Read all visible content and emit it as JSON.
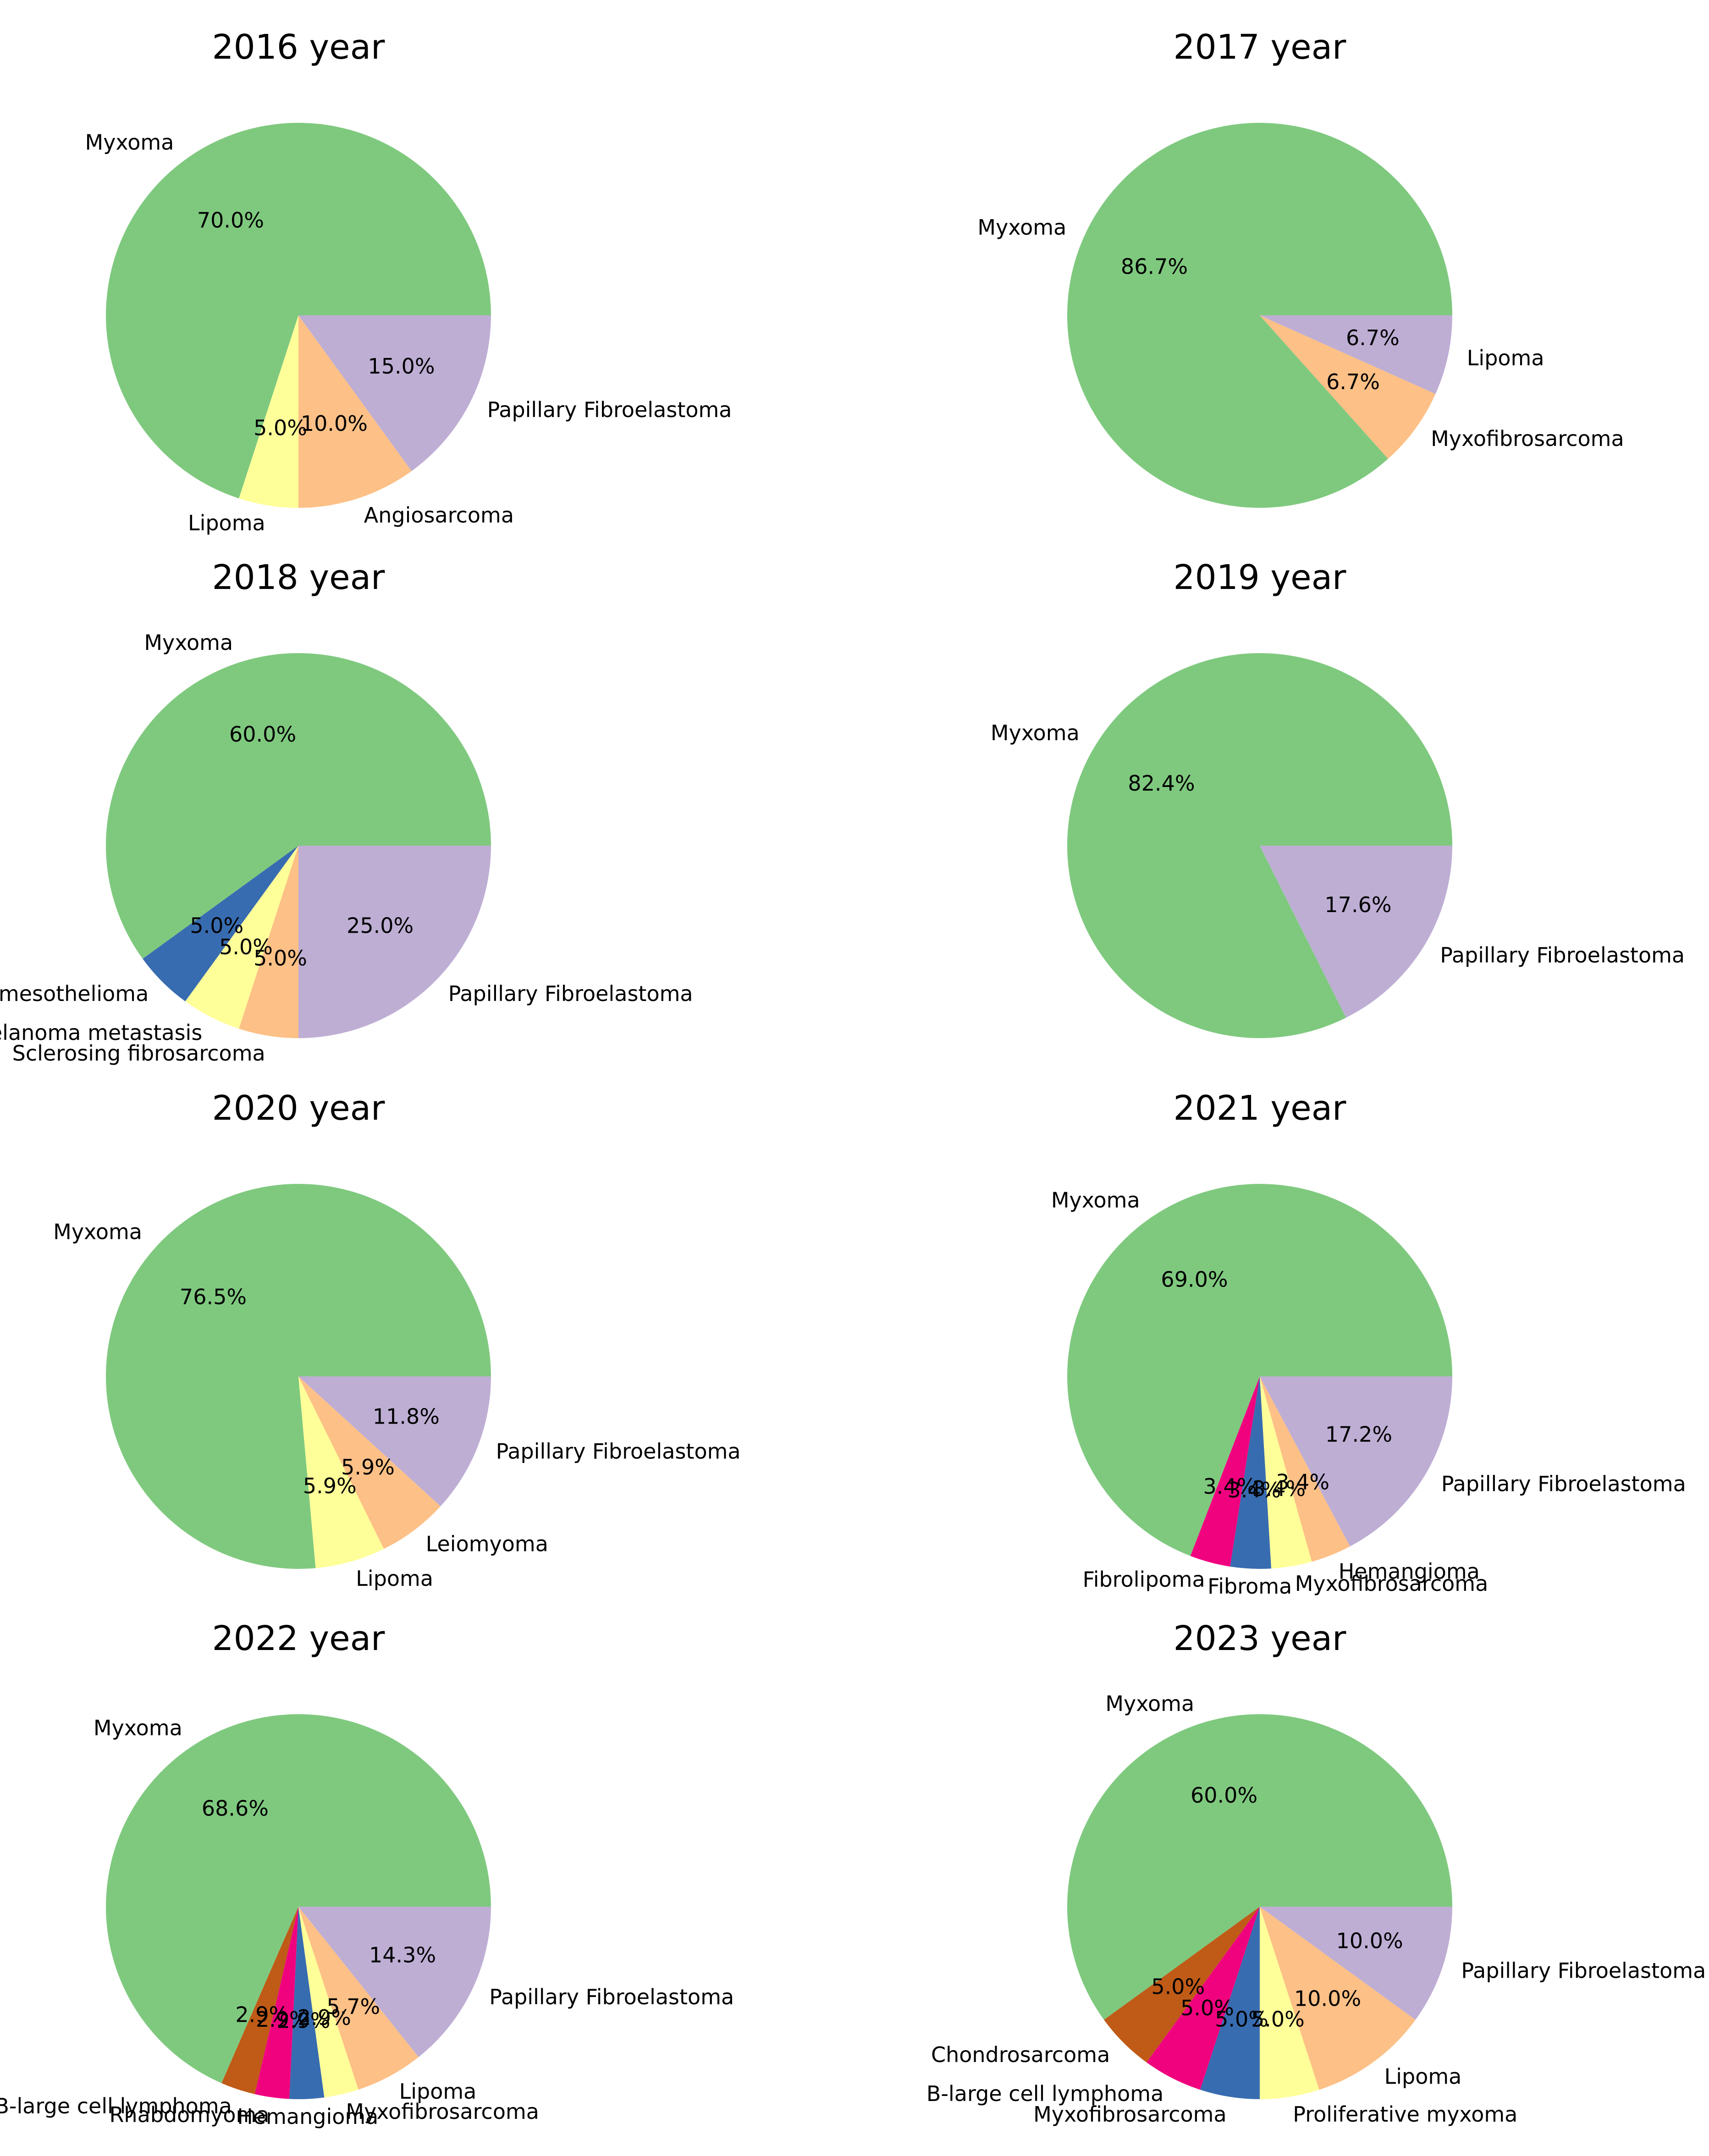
{
  "figure": {
    "layout": "4 rows x 2 columns of pie charts"
  },
  "palette": {
    "Myxoma": "#7fc97f",
    "Papillary Fibroelastoma": "#beaed4",
    "Orange": "#fdc086",
    "Yellow": "#ffff99",
    "Blue": "#386cb0",
    "Magenta": "#f0027f",
    "Brown": "#bf5b17"
  },
  "chart_data": [
    {
      "type": "pie",
      "title": "2016 year",
      "slices": [
        {
          "label": "Myxoma",
          "value": 70.0,
          "pct": "70.0%",
          "color": "#7fc97f"
        },
        {
          "label": "Lipoma",
          "value": 5.0,
          "pct": "5.0%",
          "color": "#ffff99"
        },
        {
          "label": "Angiosarcoma",
          "value": 10.0,
          "pct": "10.0%",
          "color": "#fdc086"
        },
        {
          "label": "Papillary Fibroelastoma",
          "value": 15.0,
          "pct": "15.0%",
          "color": "#beaed4"
        }
      ]
    },
    {
      "type": "pie",
      "title": "2017 year",
      "slices": [
        {
          "label": "Myxoma",
          "value": 86.7,
          "pct": "86.7%",
          "color": "#7fc97f"
        },
        {
          "label": "Myxofibrosarcoma",
          "value": 6.7,
          "pct": "6.7%",
          "color": "#fdc086"
        },
        {
          "label": "Lipoma",
          "value": 6.7,
          "pct": "6.7%",
          "color": "#beaed4"
        }
      ]
    },
    {
      "type": "pie",
      "title": "2018 year",
      "slices": [
        {
          "label": "Myxoma",
          "value": 60.0,
          "pct": "60.0%",
          "color": "#7fc97f"
        },
        {
          "label": "Epithelioid cell malignant mesothelioma",
          "value": 5.0,
          "pct": "5.0%",
          "color": "#386cb0"
        },
        {
          "label": "Melanoma metastasis",
          "value": 5.0,
          "pct": "5.0%",
          "color": "#ffff99"
        },
        {
          "label": "Sclerosing fibrosarcoma",
          "value": 5.0,
          "pct": "5.0%",
          "color": "#fdc086"
        },
        {
          "label": "Papillary Fibroelastoma",
          "value": 25.0,
          "pct": "25.0%",
          "color": "#beaed4"
        }
      ]
    },
    {
      "type": "pie",
      "title": "2019 year",
      "slices": [
        {
          "label": "Myxoma",
          "value": 82.4,
          "pct": "82.4%",
          "color": "#7fc97f"
        },
        {
          "label": "Papillary Fibroelastoma",
          "value": 17.6,
          "pct": "17.6%",
          "color": "#beaed4"
        }
      ]
    },
    {
      "type": "pie",
      "title": "2020 year",
      "slices": [
        {
          "label": "Myxoma",
          "value": 76.5,
          "pct": "76.5%",
          "color": "#7fc97f"
        },
        {
          "label": "Lipoma",
          "value": 5.9,
          "pct": "5.9%",
          "color": "#ffff99"
        },
        {
          "label": "Leiomyoma",
          "value": 5.9,
          "pct": "5.9%",
          "color": "#fdc086"
        },
        {
          "label": "Papillary Fibroelastoma",
          "value": 11.8,
          "pct": "11.8%",
          "color": "#beaed4"
        }
      ]
    },
    {
      "type": "pie",
      "title": "2021 year",
      "slices": [
        {
          "label": "Myxoma",
          "value": 69.0,
          "pct": "69.0%",
          "color": "#7fc97f"
        },
        {
          "label": "Fibrolipoma",
          "value": 3.4,
          "pct": "3.4%",
          "color": "#f0027f"
        },
        {
          "label": "Fibroma",
          "value": 3.4,
          "pct": "3.4%",
          "color": "#386cb0"
        },
        {
          "label": "Myxofibrosarcoma",
          "value": 3.4,
          "pct": "3.4%",
          "color": "#ffff99"
        },
        {
          "label": "Hemangioma",
          "value": 3.4,
          "pct": "3.4%",
          "color": "#fdc086"
        },
        {
          "label": "Papillary Fibroelastoma",
          "value": 17.2,
          "pct": "17.2%",
          "color": "#beaed4"
        }
      ]
    },
    {
      "type": "pie",
      "title": "2022 year",
      "slices": [
        {
          "label": "Myxoma",
          "value": 68.6,
          "pct": "68.6%",
          "color": "#7fc97f"
        },
        {
          "label": "B-large cell lymphoma",
          "value": 2.9,
          "pct": "2.9%",
          "color": "#bf5b17"
        },
        {
          "label": "Rhabdomyoma",
          "value": 2.9,
          "pct": "2.9%",
          "color": "#f0027f"
        },
        {
          "label": "Hemangioma",
          "value": 2.9,
          "pct": "2.9%",
          "color": "#386cb0"
        },
        {
          "label": "Myxofibrosarcoma",
          "value": 2.9,
          "pct": "2.9%",
          "color": "#ffff99"
        },
        {
          "label": "Lipoma",
          "value": 5.7,
          "pct": "5.7%",
          "color": "#fdc086"
        },
        {
          "label": "Papillary Fibroelastoma",
          "value": 14.3,
          "pct": "14.3%",
          "color": "#beaed4"
        }
      ]
    },
    {
      "type": "pie",
      "title": "2023 year",
      "slices": [
        {
          "label": "Myxoma",
          "value": 60.0,
          "pct": "60.0%",
          "color": "#7fc97f"
        },
        {
          "label": "Chondrosarcoma",
          "value": 5.0,
          "pct": "5.0%",
          "color": "#bf5b17"
        },
        {
          "label": "B-large cell lymphoma",
          "value": 5.0,
          "pct": "5.0%",
          "color": "#f0027f"
        },
        {
          "label": "Myxofibrosarcoma",
          "value": 5.0,
          "pct": "5.0%",
          "color": "#386cb0"
        },
        {
          "label": "Proliferative myxoma",
          "value": 5.0,
          "pct": "5.0%",
          "color": "#ffff99"
        },
        {
          "label": "Lipoma",
          "value": 10.0,
          "pct": "10.0%",
          "color": "#fdc086"
        },
        {
          "label": "Papillary Fibroelastoma",
          "value": 10.0,
          "pct": "10.0%",
          "color": "#beaed4"
        }
      ]
    }
  ]
}
